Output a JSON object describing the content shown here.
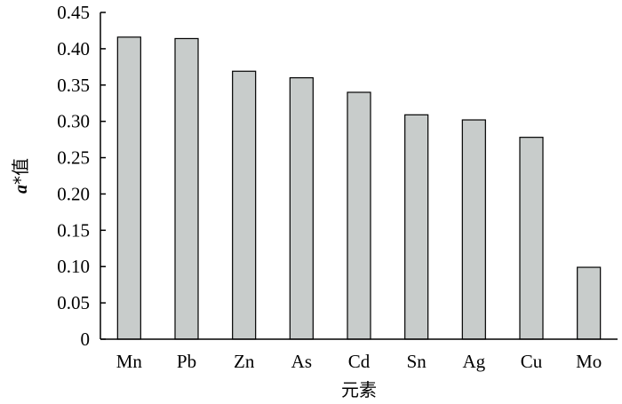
{
  "chart_data": {
    "type": "bar",
    "categories": [
      "Mn",
      "Pb",
      "Zn",
      "As",
      "Cd",
      "Sn",
      "Ag",
      "Cu",
      "Mo"
    ],
    "values": [
      0.416,
      0.414,
      0.369,
      0.36,
      0.34,
      0.309,
      0.302,
      0.278,
      0.099
    ],
    "ylabel_prefix": "a",
    "ylabel_suffix": "*值",
    "xlabel": "元素",
    "ylim": [
      0,
      0.45
    ],
    "yticks": [
      "0",
      "0.05",
      "0.10",
      "0.15",
      "0.20",
      "0.25",
      "0.30",
      "0.35",
      "0.40",
      "0.45"
    ],
    "grid": false,
    "bar_color": "#c8cccb",
    "bar_edge_color": "#000000"
  }
}
